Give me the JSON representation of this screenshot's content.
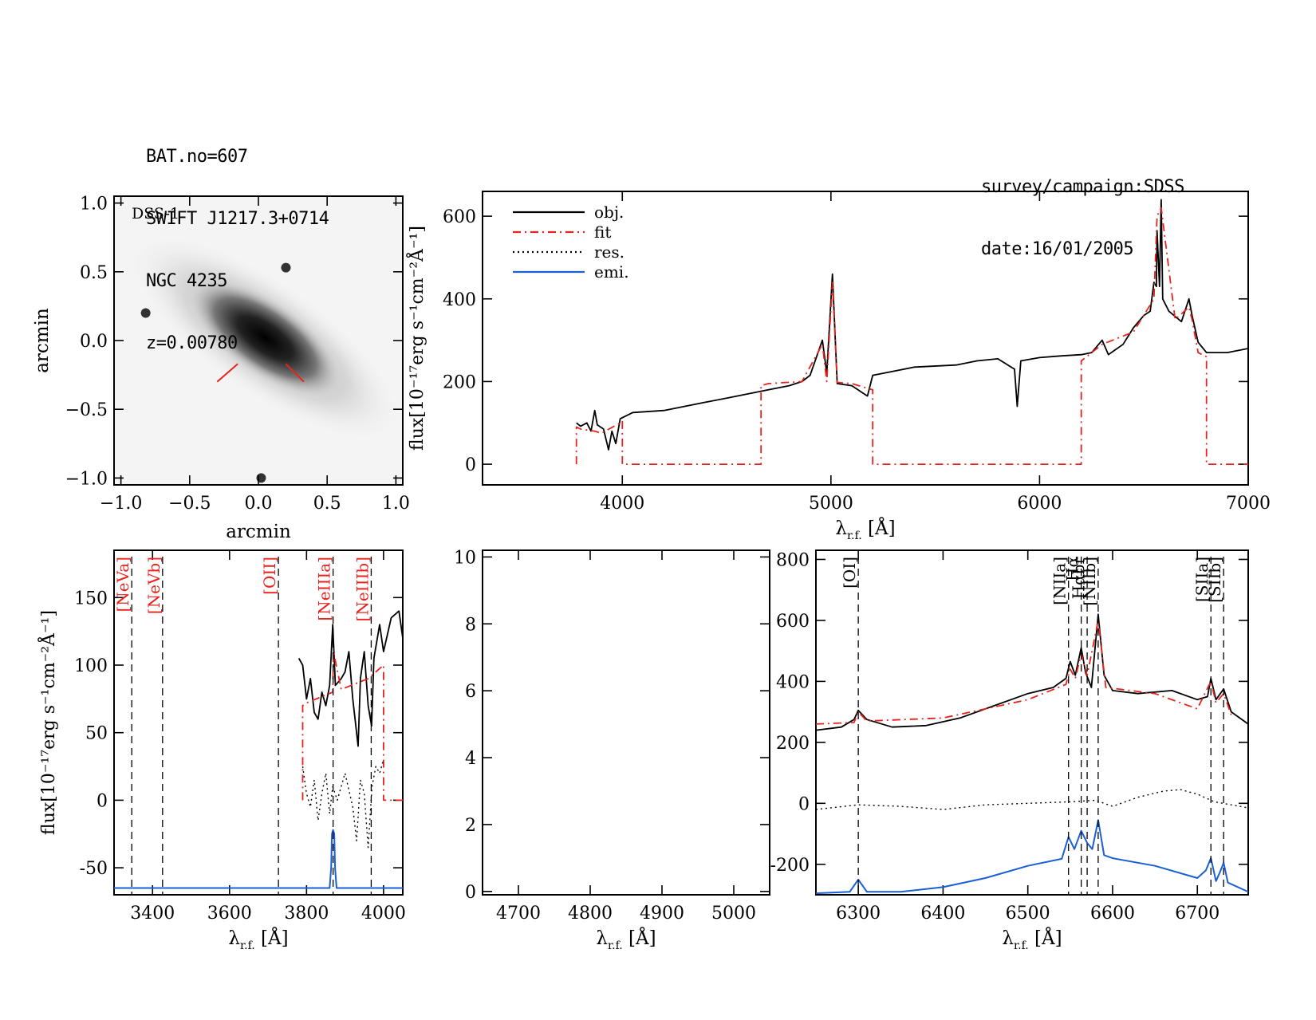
{
  "header": {
    "left_lines": [
      "BAT.no=607",
      "SWIFT J1217.3+0714",
      "NGC 4235",
      "z=0.00780"
    ],
    "right_lines": [
      "survey/campaign:SDSS",
      "date:16/01/2005"
    ]
  },
  "colors": {
    "object": "#000000",
    "fit": "#e8231d",
    "residual": "#000000",
    "emission": "#1a5fd6",
    "dashed_marker": "#000000"
  },
  "chart_data": [
    {
      "id": "image",
      "type": "heatmap",
      "image_label": "DSS-1",
      "xlabel": "arcmin",
      "ylabel": "arcmin",
      "xlim": [
        -1.05,
        1.05
      ],
      "ylim": [
        -1.05,
        1.05
      ],
      "xticks": [
        -1.0,
        -0.5,
        0.0,
        0.5,
        1.0
      ],
      "xtick_labels": [
        "−1.0",
        "−0.5",
        "0.0",
        "0.5",
        "1.0"
      ],
      "yticks": [
        1.0,
        0.5,
        0.0,
        -0.5,
        -1.0
      ],
      "ytick_labels": [
        "1.0",
        "0.5",
        "0.0",
        "−0.5",
        "−1.0"
      ],
      "galaxy": {
        "center": [
          0.05,
          0.02
        ],
        "position_angle_deg": -35,
        "major_axis": 0.95,
        "minor_axis": 0.28
      },
      "stars": [
        [
          0.2,
          0.53
        ],
        [
          -0.82,
          0.2
        ],
        [
          0.02,
          -1.0
        ]
      ],
      "slit_marks": [
        [
          [
            -0.3,
            -0.3
          ],
          [
            -0.15,
            -0.17
          ]
        ],
        [
          [
            0.2,
            -0.17
          ],
          [
            0.33,
            -0.3
          ]
        ]
      ]
    },
    {
      "id": "full",
      "type": "line",
      "ylabel": "flux[10⁻¹⁷erg s⁻¹cm⁻²Å⁻¹]",
      "xlabel": "λr.f. [Å]",
      "xlim": [
        3330,
        7000
      ],
      "ylim": [
        -50,
        660
      ],
      "xticks": [
        4000,
        5000,
        6000,
        7000
      ],
      "yticks": [
        0,
        200,
        400,
        600
      ],
      "legend": {
        "position": "top-left",
        "entries": [
          "obj.",
          "fit",
          "res.",
          "emi."
        ]
      },
      "series": [
        {
          "name": "obj.",
          "style": "solid-black",
          "x": [
            3780,
            3800,
            3830,
            3850,
            3868,
            3880,
            3910,
            3934,
            3950,
            3969,
            3990,
            4050,
            4200,
            4300,
            4400,
            4500,
            4600,
            4700,
            4800,
            4861,
            4900,
            4959,
            4980,
            5007,
            5030,
            5100,
            5175,
            5200,
            5300,
            5400,
            5600,
            5700,
            5800,
            5880,
            5893,
            5910,
            6000,
            6100,
            6200,
            6250,
            6300,
            6330,
            6400,
            6450,
            6500,
            6530,
            6548,
            6560,
            6563,
            6575,
            6583,
            6590,
            6620,
            6680,
            6716,
            6731,
            6760,
            6800,
            6900,
            7000
          ],
          "y": [
            100,
            92,
            100,
            80,
            130,
            95,
            85,
            35,
            80,
            50,
            110,
            125,
            130,
            140,
            150,
            160,
            170,
            180,
            190,
            200,
            215,
            300,
            220,
            460,
            195,
            190,
            165,
            215,
            225,
            235,
            240,
            250,
            255,
            230,
            140,
            250,
            258,
            262,
            265,
            270,
            300,
            265,
            290,
            330,
            360,
            370,
            440,
            430,
            565,
            430,
            640,
            400,
            370,
            345,
            400,
            360,
            295,
            270,
            270,
            280
          ]
        },
        {
          "name": "fit",
          "style": "dashdot-red",
          "x": [
            3780,
            3780,
            3800,
            3868,
            3900,
            3990,
            4000,
            4000,
            4665,
            4665,
            4700,
            4861,
            4959,
            4980,
            5007,
            5030,
            5100,
            5200,
            5200,
            6200,
            6200,
            6300,
            6450,
            6548,
            6563,
            6583,
            6650,
            6716,
            6731,
            6760,
            6800,
            6800,
            7000
          ],
          "y": [
            0,
            90,
            85,
            80,
            75,
            100,
            105,
            0,
            0,
            190,
            195,
            200,
            290,
            200,
            440,
            198,
            195,
            180,
            0,
            0,
            250,
            290,
            320,
            400,
            600,
            620,
            350,
            380,
            350,
            270,
            260,
            0,
            0
          ]
        }
      ]
    },
    {
      "id": "zoom1",
      "type": "line",
      "ylabel": "flux[10⁻¹⁷erg s⁻¹cm⁻²Å⁻¹]",
      "xlabel": "λr.f. [Å]",
      "xlim": [
        3300,
        4050
      ],
      "ylim": [
        -70,
        185
      ],
      "xticks": [
        3400,
        3600,
        3800,
        4000
      ],
      "yticks": [
        -50,
        0,
        50,
        100,
        150
      ],
      "markers": [
        {
          "label": "[NeVa]",
          "x": 3346
        },
        {
          "label": "[NeVb]",
          "x": 3426
        },
        {
          "label": "[OII]",
          "x": 3727
        },
        {
          "label": "[NeIIIa]",
          "x": 3869
        },
        {
          "label": "[NeIIIb]",
          "x": 3968
        }
      ],
      "series": [
        {
          "name": "obj.",
          "style": "solid-black",
          "x": [
            3780,
            3790,
            3800,
            3810,
            3820,
            3830,
            3840,
            3850,
            3860,
            3868,
            3875,
            3890,
            3900,
            3910,
            3920,
            3934,
            3940,
            3950,
            3960,
            3969,
            3975,
            3990,
            4000,
            4020,
            4040,
            4050
          ],
          "y": [
            105,
            100,
            75,
            90,
            65,
            60,
            80,
            70,
            85,
            130,
            85,
            90,
            95,
            110,
            75,
            40,
            90,
            110,
            70,
            55,
            105,
            130,
            110,
            135,
            140,
            120
          ]
        },
        {
          "name": "fit",
          "style": "dashdot-red",
          "x": [
            3790,
            3790,
            3800,
            3868,
            3870,
            3890,
            3960,
            4000,
            4000,
            4050
          ],
          "y": [
            0,
            70,
            72,
            80,
            110,
            82,
            90,
            100,
            0,
            0
          ]
        },
        {
          "name": "res.",
          "style": "dotted-black",
          "x": [
            3790,
            3800,
            3810,
            3820,
            3830,
            3840,
            3850,
            3860,
            3868,
            3880,
            3900,
            3920,
            3930,
            3940,
            3950,
            3960,
            3970,
            3980,
            3990,
            4000
          ],
          "y": [
            25,
            5,
            -5,
            15,
            -15,
            5,
            20,
            -10,
            10,
            0,
            20,
            -5,
            -30,
            15,
            5,
            -35,
            10,
            25,
            20,
            30
          ]
        },
        {
          "name": "emi.",
          "style": "solid-blue",
          "x": [
            3300,
            3860,
            3864,
            3866,
            3869,
            3872,
            3874,
            3878,
            4050
          ],
          "y": [
            -65,
            -65,
            -50,
            -25,
            -22,
            -25,
            -50,
            -65,
            -65
          ]
        }
      ]
    },
    {
      "id": "zoom2",
      "type": "line",
      "xlabel": "λr.f. [Å]",
      "xlim": [
        4650,
        5050
      ],
      "ylim": [
        -0.1,
        10.2
      ],
      "xticks": [
        4700,
        4800,
        4900,
        5000
      ],
      "yticks": [
        0,
        2,
        4,
        6,
        8,
        10
      ],
      "series": []
    },
    {
      "id": "zoom3",
      "type": "line",
      "xlabel": "λr.f. [Å]",
      "xlim": [
        6250,
        6760
      ],
      "ylim": [
        -300,
        830
      ],
      "xticks": [
        6300,
        6400,
        6500,
        6600,
        6700
      ],
      "yticks": [
        -200,
        0,
        200,
        400,
        600,
        800
      ],
      "markers": [
        {
          "label": "[OI]",
          "x": 6300
        },
        {
          "label": "[NIIa]",
          "x": 6548
        },
        {
          "label": "Hα",
          "x": 6563
        },
        {
          "label": "Hαbr",
          "x": 6570
        },
        {
          "label": "[NIIb]",
          "x": 6583
        },
        {
          "label": "[SIIa]",
          "x": 6716
        },
        {
          "label": "[SIIb]",
          "x": 6731
        }
      ],
      "series": [
        {
          "name": "obj.",
          "style": "solid-black",
          "x": [
            6250,
            6280,
            6295,
            6300,
            6310,
            6340,
            6380,
            6420,
            6460,
            6500,
            6530,
            6545,
            6550,
            6556,
            6563,
            6568,
            6575,
            6583,
            6590,
            6600,
            6630,
            6670,
            6700,
            6712,
            6716,
            6722,
            6731,
            6740,
            6760
          ],
          "y": [
            240,
            250,
            275,
            305,
            275,
            250,
            255,
            280,
            320,
            360,
            380,
            410,
            465,
            420,
            510,
            430,
            380,
            620,
            420,
            370,
            360,
            370,
            340,
            350,
            410,
            340,
            375,
            300,
            260
          ]
        },
        {
          "name": "fit",
          "style": "dashdot-red",
          "x": [
            6250,
            6295,
            6300,
            6310,
            6400,
            6500,
            6545,
            6550,
            6556,
            6563,
            6570,
            6583,
            6592,
            6650,
            6700,
            6716,
            6722,
            6731,
            6740
          ],
          "y": [
            260,
            265,
            300,
            270,
            280,
            340,
            390,
            440,
            410,
            490,
            420,
            600,
            380,
            360,
            310,
            400,
            330,
            360,
            290
          ]
        },
        {
          "name": "res.",
          "style": "dotted-black",
          "x": [
            6250,
            6300,
            6350,
            6400,
            6450,
            6500,
            6550,
            6580,
            6600,
            6630,
            6660,
            6680,
            6700,
            6720,
            6740,
            6760
          ],
          "y": [
            -20,
            -5,
            -10,
            -20,
            -5,
            0,
            5,
            10,
            -10,
            20,
            40,
            45,
            30,
            5,
            -5,
            -15
          ]
        },
        {
          "name": "emi.",
          "style": "solid-blue",
          "x": [
            6250,
            6290,
            6295,
            6300,
            6305,
            6310,
            6350,
            6400,
            6450,
            6500,
            6540,
            6548,
            6555,
            6563,
            6570,
            6576,
            6583,
            6590,
            6600,
            6650,
            6700,
            6710,
            6716,
            6722,
            6726,
            6731,
            6736,
            6760
          ],
          "y": [
            -295,
            -290,
            -270,
            -250,
            -270,
            -290,
            -290,
            -275,
            -245,
            -205,
            -182,
            -110,
            -150,
            -90,
            -130,
            -150,
            -55,
            -170,
            -180,
            -205,
            -245,
            -220,
            -180,
            -255,
            -230,
            -195,
            -260,
            -290
          ]
        }
      ]
    }
  ]
}
